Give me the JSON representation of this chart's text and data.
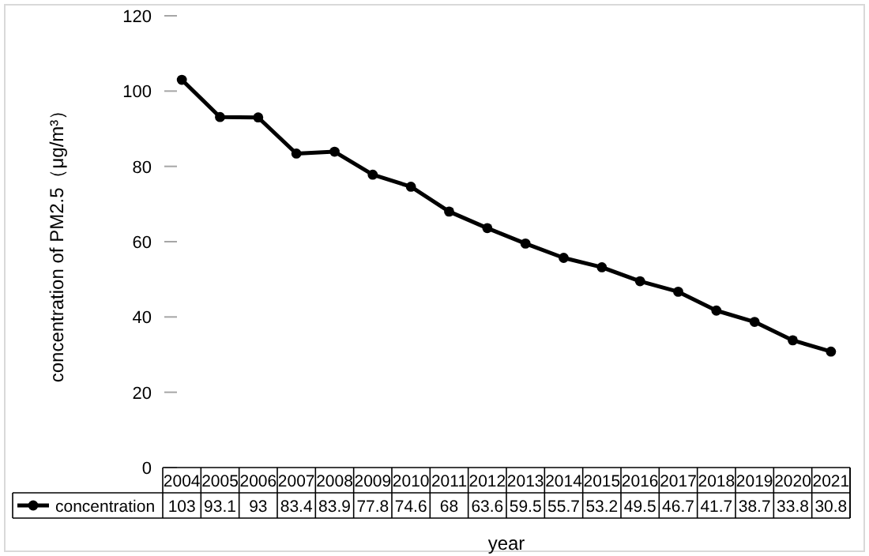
{
  "chart_data": {
    "type": "line",
    "xlabel": "year",
    "ylabel": "concentration of PM2.5（μg/m³）",
    "categories": [
      "2004",
      "2005",
      "2006",
      "2007",
      "2008",
      "2009",
      "2010",
      "2011",
      "2012",
      "2013",
      "2014",
      "2015",
      "2016",
      "2017",
      "2018",
      "2019",
      "2020",
      "2021"
    ],
    "series": [
      {
        "name": "concentration",
        "color": "#000000",
        "values": [
          103,
          93.1,
          93,
          83.4,
          83.9,
          77.8,
          74.6,
          68,
          63.6,
          59.5,
          55.7,
          53.2,
          49.5,
          46.7,
          41.7,
          38.7,
          33.8,
          30.8
        ]
      }
    ],
    "ylim": [
      0,
      120
    ],
    "yticks": [
      0,
      20,
      40,
      60,
      80,
      100,
      120
    ],
    "data_labels": true,
    "legend": "bottom left",
    "marker": "circle",
    "line_style": "solid"
  }
}
